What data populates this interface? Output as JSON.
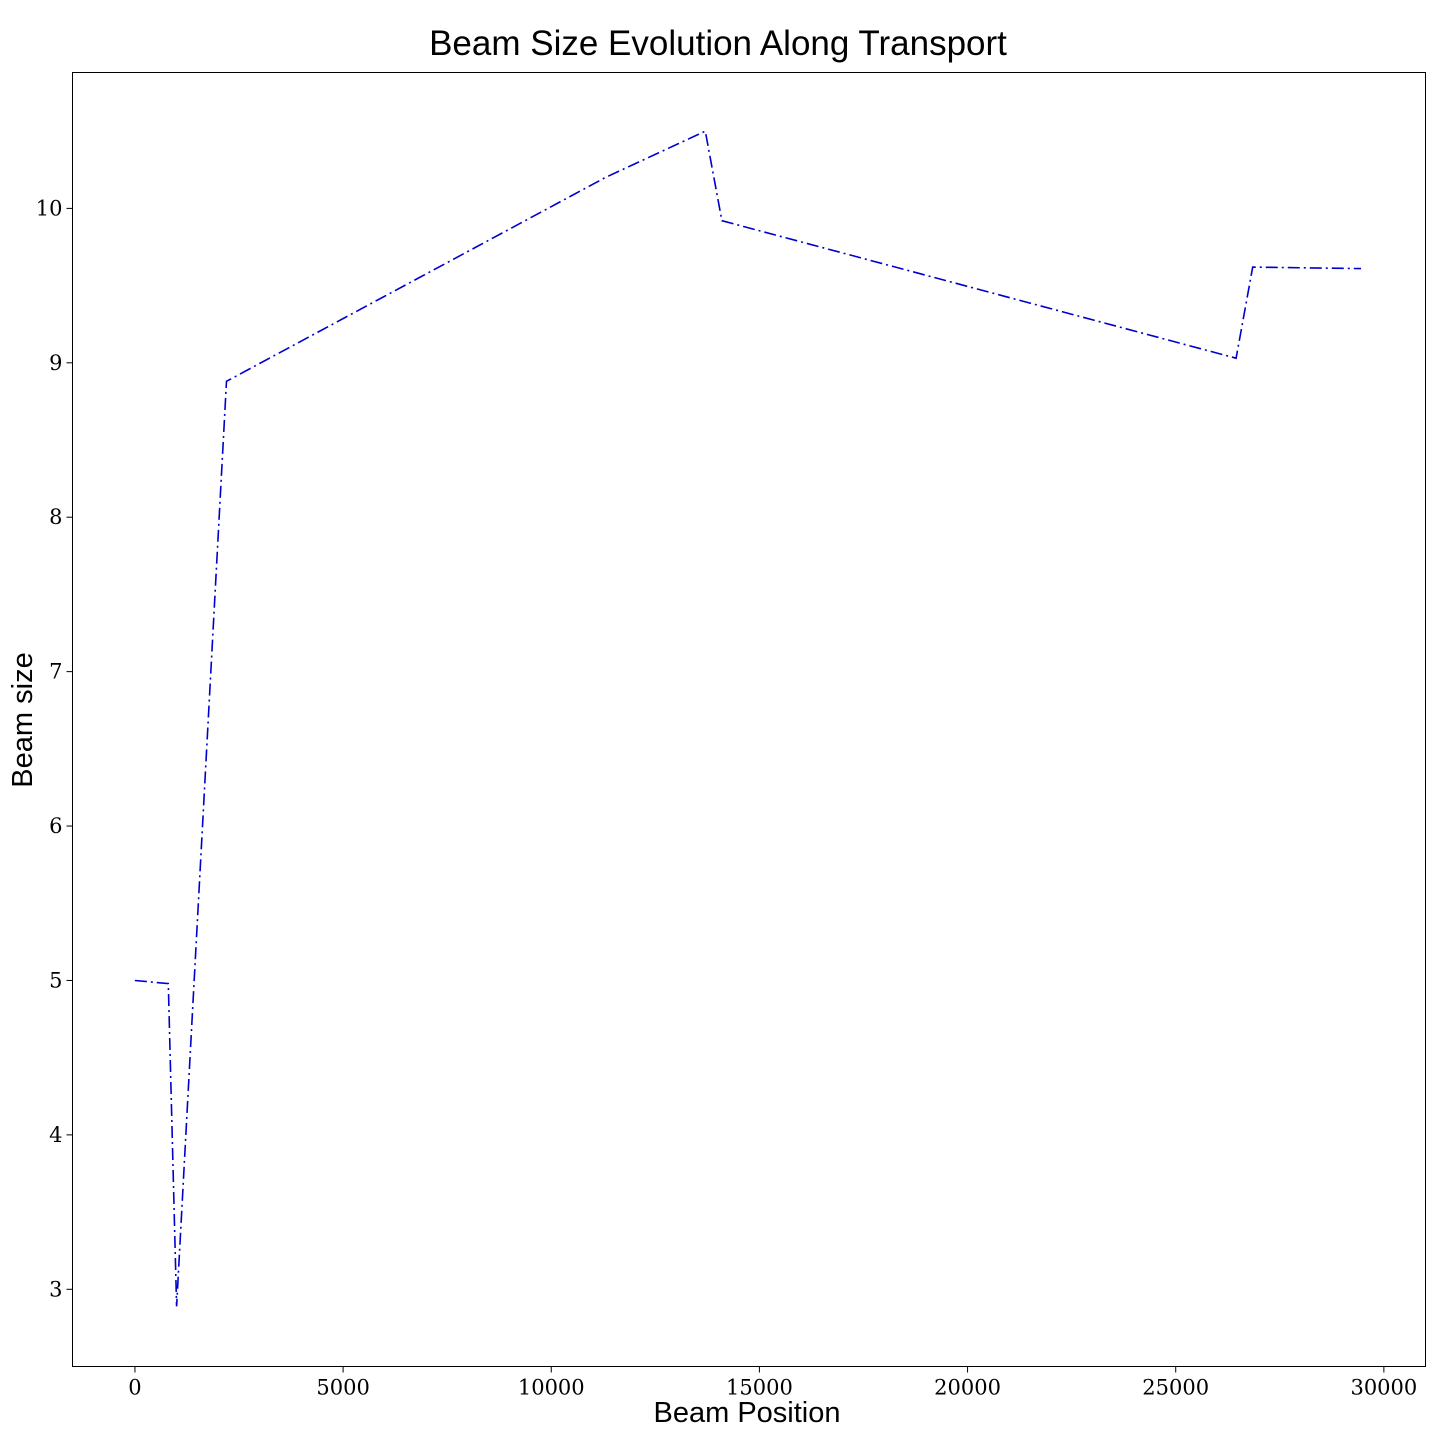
{
  "chart_data": {
    "type": "line",
    "title": "Beam Size Evolution Along Transport",
    "xlabel": "Beam Position",
    "ylabel": "Beam size",
    "xlim": [
      -1500,
      31000
    ],
    "ylim": [
      2.5,
      10.88
    ],
    "x_ticks": [
      0,
      5000,
      10000,
      15000,
      20000,
      25000,
      30000
    ],
    "y_ticks": [
      3,
      4,
      5,
      6,
      7,
      8,
      9,
      10
    ],
    "grid": false,
    "legend": "none",
    "line_style": "dash-dot",
    "line_color": "#0000cc",
    "series": [
      {
        "x": [
          0,
          800,
          1000,
          2200,
          11300,
          13700,
          14100,
          26450,
          26850,
          29450
        ],
        "y": [
          5.0,
          4.98,
          2.89,
          8.88,
          10.2,
          10.5,
          9.92,
          9.03,
          9.62,
          9.61
        ]
      }
    ]
  }
}
